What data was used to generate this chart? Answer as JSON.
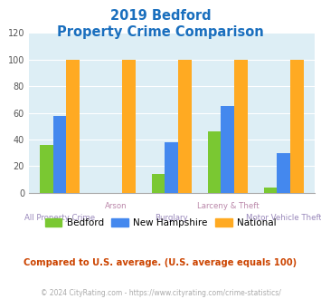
{
  "title_line1": "2019 Bedford",
  "title_line2": "Property Crime Comparison",
  "categories": [
    "All Property Crime",
    "Arson",
    "Burglary",
    "Larceny & Theft",
    "Motor Vehicle Theft"
  ],
  "bedford": [
    36,
    0,
    14,
    46,
    4
  ],
  "new_hampshire": [
    58,
    0,
    38,
    65,
    30
  ],
  "national": [
    100,
    100,
    100,
    100,
    100
  ],
  "color_bedford": "#7ac832",
  "color_nh": "#4488ee",
  "color_national": "#ffaa22",
  "ylim": [
    0,
    120
  ],
  "yticks": [
    0,
    20,
    40,
    60,
    80,
    100,
    120
  ],
  "bg_color": "#ddeef5",
  "title_color": "#1a6fbe",
  "xlabel_upper_color": "#bb88aa",
  "xlabel_lower_color": "#9988bb",
  "note_text": "Compared to U.S. average. (U.S. average equals 100)",
  "note_color": "#cc4400",
  "footer_text": "© 2024 CityRating.com - https://www.cityrating.com/crime-statistics/",
  "footer_color": "#aaaaaa",
  "legend_labels": [
    "Bedford",
    "New Hampshire",
    "National"
  ]
}
